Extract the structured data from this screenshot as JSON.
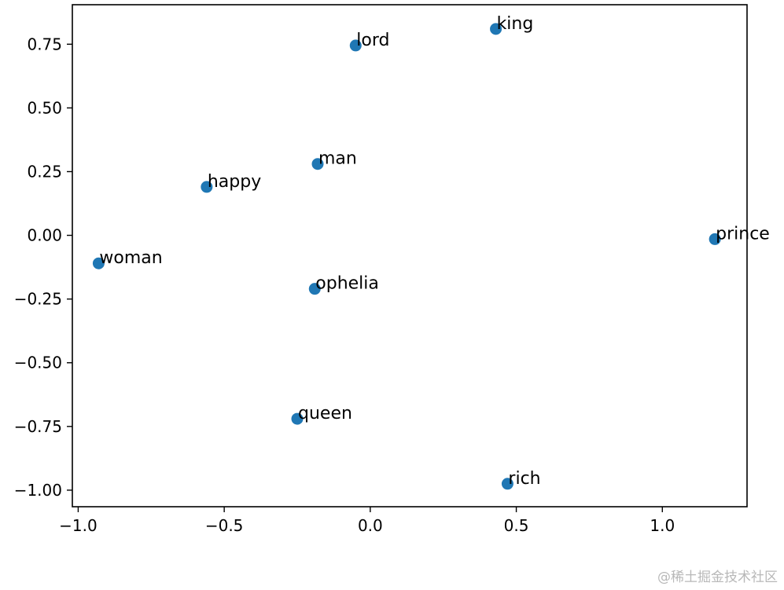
{
  "chart_data": {
    "type": "scatter",
    "title": "",
    "xlabel": "",
    "ylabel": "",
    "xlim": [
      -1.02,
      1.29
    ],
    "ylim": [
      -1.065,
      0.905
    ],
    "xticks": [
      -1.0,
      -0.5,
      0.0,
      0.5,
      1.0
    ],
    "xtick_labels": [
      "−1.0",
      "−0.5",
      "0.0",
      "0.5",
      "1.0"
    ],
    "yticks": [
      -1.0,
      -0.75,
      -0.5,
      -0.25,
      0.0,
      0.25,
      0.5,
      0.75
    ],
    "ytick_labels": [
      "−1.00",
      "−0.75",
      "−0.50",
      "−0.25",
      "0.00",
      "0.25",
      "0.50",
      "0.75"
    ],
    "grid": false,
    "marker_color": "#1f77b4",
    "points": [
      {
        "label": "king",
        "x": 0.43,
        "y": 0.81
      },
      {
        "label": "lord",
        "x": -0.05,
        "y": 0.745
      },
      {
        "label": "man",
        "x": -0.18,
        "y": 0.28
      },
      {
        "label": "happy",
        "x": -0.56,
        "y": 0.19
      },
      {
        "label": "prince",
        "x": 1.18,
        "y": -0.015
      },
      {
        "label": "woman",
        "x": -0.93,
        "y": -0.11
      },
      {
        "label": "ophelia",
        "x": -0.19,
        "y": -0.21
      },
      {
        "label": "queen",
        "x": -0.25,
        "y": -0.72
      },
      {
        "label": "rich",
        "x": 0.47,
        "y": -0.975
      }
    ]
  },
  "watermark": "@稀土掘金技术社区"
}
